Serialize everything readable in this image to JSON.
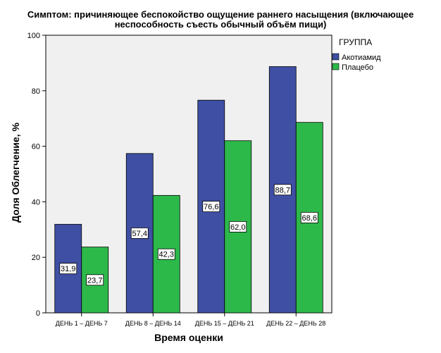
{
  "chart_data": {
    "type": "bar",
    "title_line1": "Симптом: причиняющее беспокойство ощущение раннего насыщения (включающее",
    "title_line2": "неспособность съесть обычный объём пищи)",
    "xlabel": "Время оценки",
    "ylabel": "Доля Облегчение, %",
    "ylim": [
      0,
      100
    ],
    "yticks": [
      0,
      20,
      40,
      60,
      80,
      100
    ],
    "categories": [
      "ДЕНЬ 1 – ДЕНЬ 7",
      "ДЕНЬ 8 – ДЕНЬ 14",
      "ДЕНЬ 15 – ДЕНЬ 21",
      "ДЕНЬ 22 – ДЕНЬ 28"
    ],
    "legend_title": "ГРУППА",
    "legend_position": "right",
    "grid": false,
    "series": [
      {
        "name": "Акотиамид",
        "color": "#3f4fa3",
        "values": [
          31.9,
          57.4,
          76.6,
          88.7
        ],
        "labels": [
          "31,9",
          "57,4",
          "76,6",
          "88,7"
        ]
      },
      {
        "name": "Плацебо",
        "color": "#2db84a",
        "values": [
          23.7,
          42.3,
          62.0,
          68.6
        ],
        "labels": [
          "23,7",
          "42,3",
          "62,0",
          "68,6"
        ]
      }
    ],
    "plot_background": "#f0f0f0"
  }
}
